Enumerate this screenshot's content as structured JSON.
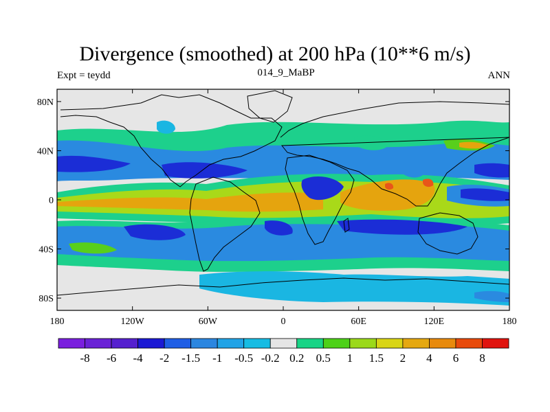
{
  "title": "Divergence (smoothed) at 200 hPa (10**6 m/s)",
  "subtitle_left": "Expt = teydd",
  "subtitle_center": "014_9_MaBP",
  "subtitle_right": "ANN",
  "map": {
    "lon_ticks": [
      {
        "value": -180,
        "label": "180"
      },
      {
        "value": -120,
        "label": "120W"
      },
      {
        "value": -60,
        "label": "60W"
      },
      {
        "value": 0,
        "label": "0"
      },
      {
        "value": 60,
        "label": "60E"
      },
      {
        "value": 120,
        "label": "120E"
      },
      {
        "value": 180,
        "label": "180"
      }
    ],
    "lat_ticks": [
      {
        "value": 80,
        "label": "80N"
      },
      {
        "value": 40,
        "label": "40N"
      },
      {
        "value": 0,
        "label": "0"
      },
      {
        "value": -40,
        "label": "40S"
      },
      {
        "value": -80,
        "label": "80S"
      }
    ],
    "lon_range": [
      -180,
      180
    ],
    "lat_range": [
      -90,
      90
    ]
  },
  "colorbar": {
    "colors": [
      "#7a1fde",
      "#6a22d6",
      "#5520cf",
      "#1b19d4",
      "#1f5ee5",
      "#2b86e0",
      "#21a3e6",
      "#17bce3",
      "#e5e5e5",
      "#19d486",
      "#4dd118",
      "#9bd91a",
      "#d9d515",
      "#e5a810",
      "#e88a0c",
      "#e84a0b",
      "#e0130e"
    ],
    "labels": [
      "-8",
      "-6",
      "-4",
      "-2",
      "-1.5",
      "-1",
      "-0.5",
      "-0.2",
      "0.2",
      "0.5",
      "1",
      "1.5",
      "2",
      "4",
      "6",
      "8"
    ]
  },
  "field_colors": {
    "neutral": "#e6e6e6",
    "c_blue": "#2a8ae0",
    "c_darkblue": "#1b2dd6",
    "c_cyan": "#1ab6e2",
    "c_green": "#1dd08c",
    "c_lime": "#58cf1c",
    "c_yellowgreen": "#a9d919",
    "c_yellow": "#dcd316",
    "c_orange": "#e5a40e",
    "c_red": "#e8561a"
  }
}
